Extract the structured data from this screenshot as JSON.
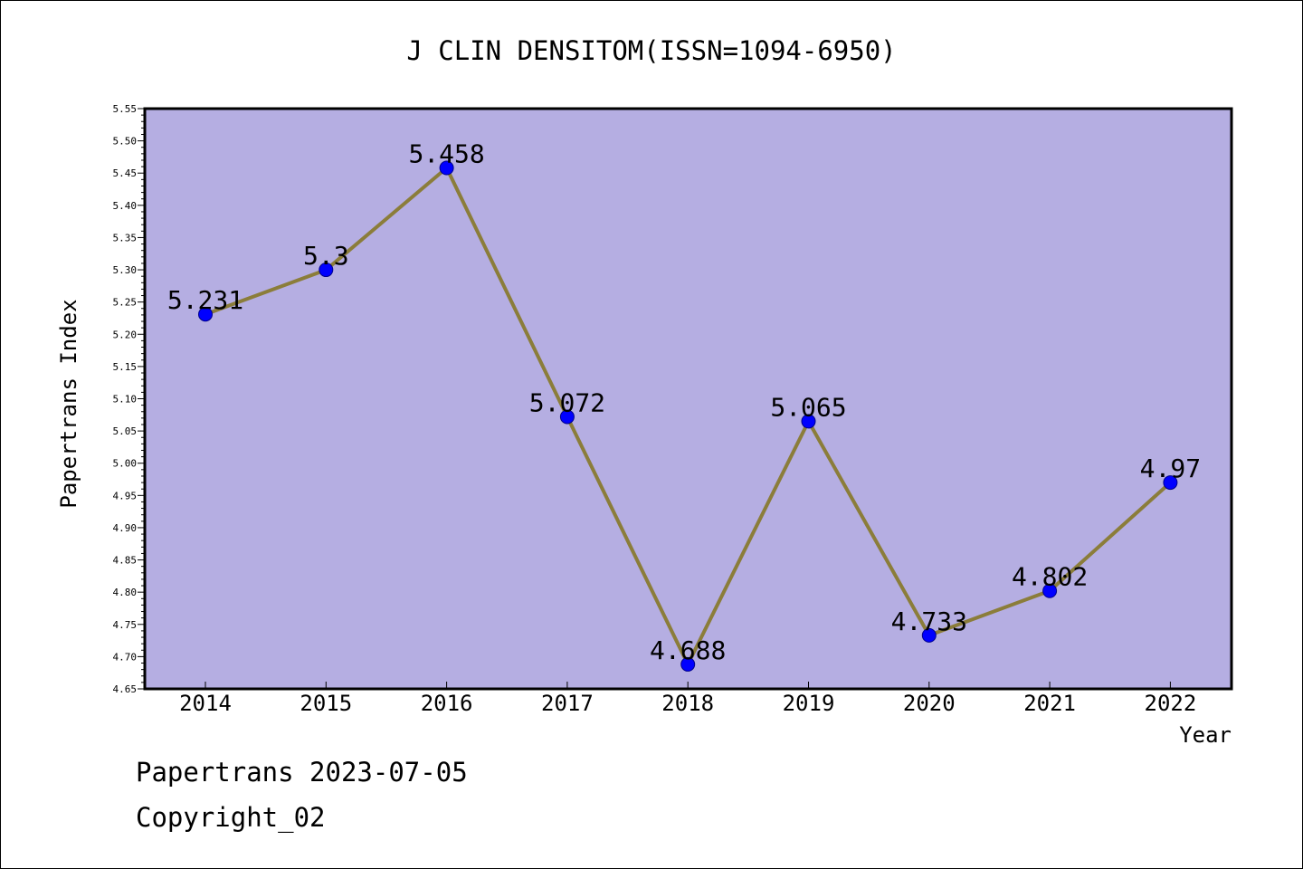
{
  "title": "J CLIN DENSITOM(ISSN=1094-6950)",
  "footer": {
    "date_line": "Papertrans 2023-07-05",
    "copyright_line": "Copyright_02"
  },
  "colors": {
    "plot_background": "#b5aee2",
    "line": "#8b7d3a",
    "marker": "#0000ff",
    "marker_outline": "#00008b"
  },
  "chart_data": {
    "type": "line",
    "title": "J CLIN DENSITOM(ISSN=1094-6950)",
    "xlabel": "Year",
    "ylabel": "Papertrans Index",
    "categories": [
      "2014",
      "2015",
      "2016",
      "2017",
      "2018",
      "2019",
      "2020",
      "2021",
      "2022"
    ],
    "series": [
      {
        "values": [
          5.231,
          5.3,
          5.458,
          5.072,
          4.688,
          5.065,
          4.733,
          4.802,
          4.97
        ],
        "labels": [
          "5.231",
          "5.3",
          "5.458",
          "5.072",
          "4.688",
          "5.065",
          "4.733",
          "4.802",
          "4.97"
        ]
      }
    ],
    "ylim": [
      4.65,
      5.55
    ],
    "y_major_ticks": [
      "4.65",
      "4.70",
      "4.75",
      "4.80",
      "4.85",
      "4.90",
      "4.95",
      "5.00",
      "5.05",
      "5.10",
      "5.15",
      "5.20",
      "5.25",
      "5.30",
      "5.35",
      "5.40",
      "5.45",
      "5.50",
      "5.55"
    ],
    "grid": false,
    "legend": "none"
  }
}
